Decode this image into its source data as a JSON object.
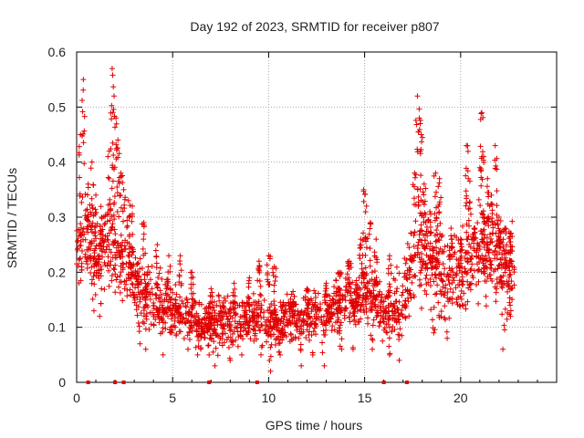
{
  "chart_data": {
    "type": "scatter",
    "title": "Day 192 of 2023, SRMTID for receiver p807",
    "xlabel": "GPS time / hours",
    "ylabel": "SRMTID / TECUs",
    "xlim": [
      0,
      25
    ],
    "ylim": [
      0,
      0.6
    ],
    "xticks": [
      0,
      5,
      10,
      15,
      20
    ],
    "yticks": [
      0,
      0.1,
      0.2,
      0.3,
      0.4,
      0.5,
      0.6
    ],
    "xtick_labels": [
      "0",
      "5",
      "10",
      "15",
      "20"
    ],
    "ytick_labels": [
      "0",
      "0.1",
      "0.2",
      "0.3",
      "0.4",
      "0.5",
      "0.6"
    ],
    "grid": true,
    "marker": "+",
    "color": "#e00000",
    "trend": [
      [
        0.0,
        0.24
      ],
      [
        0.5,
        0.26
      ],
      [
        1.0,
        0.22
      ],
      [
        1.5,
        0.25
      ],
      [
        2.0,
        0.24
      ],
      [
        2.5,
        0.22
      ],
      [
        3.0,
        0.19
      ],
      [
        3.5,
        0.16
      ],
      [
        4.0,
        0.15
      ],
      [
        4.5,
        0.14
      ],
      [
        5.0,
        0.13
      ],
      [
        5.5,
        0.13
      ],
      [
        6.0,
        0.12
      ],
      [
        6.5,
        0.11
      ],
      [
        7.0,
        0.11
      ],
      [
        7.5,
        0.11
      ],
      [
        8.0,
        0.11
      ],
      [
        8.5,
        0.11
      ],
      [
        9.0,
        0.11
      ],
      [
        9.5,
        0.12
      ],
      [
        10.0,
        0.11
      ],
      [
        10.5,
        0.1
      ],
      [
        11.0,
        0.12
      ],
      [
        11.5,
        0.12
      ],
      [
        12.0,
        0.12
      ],
      [
        12.5,
        0.12
      ],
      [
        13.0,
        0.12
      ],
      [
        13.5,
        0.14
      ],
      [
        14.0,
        0.15
      ],
      [
        14.5,
        0.15
      ],
      [
        15.0,
        0.16
      ],
      [
        15.5,
        0.15
      ],
      [
        16.0,
        0.13
      ],
      [
        16.5,
        0.13
      ],
      [
        17.0,
        0.14
      ],
      [
        17.5,
        0.22
      ],
      [
        18.0,
        0.23
      ],
      [
        18.5,
        0.22
      ],
      [
        19.0,
        0.2
      ],
      [
        19.5,
        0.2
      ],
      [
        20.0,
        0.2
      ],
      [
        20.5,
        0.22
      ],
      [
        21.0,
        0.23
      ],
      [
        21.5,
        0.24
      ],
      [
        22.0,
        0.22
      ],
      [
        22.5,
        0.21
      ],
      [
        22.8,
        0.21
      ]
    ],
    "spread": [
      [
        0.0,
        0.07
      ],
      [
        2.0,
        0.08
      ],
      [
        3.5,
        0.05
      ],
      [
        5.0,
        0.04
      ],
      [
        9.0,
        0.04
      ],
      [
        13.5,
        0.04
      ],
      [
        16.0,
        0.04
      ],
      [
        17.5,
        0.07
      ],
      [
        22.8,
        0.07
      ]
    ],
    "peaks": [
      [
        0.35,
        0.55
      ],
      [
        0.2,
        0.45
      ],
      [
        0.6,
        0.36
      ],
      [
        0.8,
        0.4
      ],
      [
        1.0,
        0.34
      ],
      [
        1.3,
        0.3
      ],
      [
        1.7,
        0.42
      ],
      [
        1.85,
        0.57
      ],
      [
        1.95,
        0.52
      ],
      [
        2.05,
        0.48
      ],
      [
        2.15,
        0.44
      ],
      [
        2.3,
        0.38
      ],
      [
        2.45,
        0.35
      ],
      [
        2.7,
        0.33
      ],
      [
        2.9,
        0.32
      ],
      [
        3.5,
        0.29
      ],
      [
        4.2,
        0.25
      ],
      [
        4.8,
        0.23
      ],
      [
        5.4,
        0.23
      ],
      [
        6.0,
        0.2
      ],
      [
        7.0,
        0.17
      ],
      [
        8.2,
        0.18
      ],
      [
        9.0,
        0.19
      ],
      [
        9.5,
        0.22
      ],
      [
        10.0,
        0.23
      ],
      [
        10.3,
        0.21
      ],
      [
        11.2,
        0.16
      ],
      [
        12.0,
        0.17
      ],
      [
        13.0,
        0.18
      ],
      [
        13.7,
        0.2
      ],
      [
        14.2,
        0.22
      ],
      [
        14.8,
        0.26
      ],
      [
        14.95,
        0.35
      ],
      [
        15.1,
        0.32
      ],
      [
        15.3,
        0.29
      ],
      [
        15.6,
        0.26
      ],
      [
        16.3,
        0.23
      ],
      [
        17.4,
        0.23
      ],
      [
        17.6,
        0.38
      ],
      [
        17.75,
        0.52
      ],
      [
        17.85,
        0.48
      ],
      [
        17.95,
        0.45
      ],
      [
        18.1,
        0.36
      ],
      [
        18.4,
        0.31
      ],
      [
        18.7,
        0.38
      ],
      [
        18.9,
        0.37
      ],
      [
        19.5,
        0.28
      ],
      [
        20.0,
        0.26
      ],
      [
        20.3,
        0.43
      ],
      [
        20.4,
        0.37
      ],
      [
        20.7,
        0.28
      ],
      [
        21.0,
        0.39
      ],
      [
        21.1,
        0.49
      ],
      [
        21.2,
        0.41
      ],
      [
        21.4,
        0.37
      ],
      [
        21.6,
        0.34
      ],
      [
        21.8,
        0.43
      ],
      [
        22.0,
        0.3
      ],
      [
        22.3,
        0.28
      ],
      [
        22.6,
        0.27
      ]
    ],
    "lows": [
      [
        0.9,
        0.13
      ],
      [
        1.2,
        0.12
      ],
      [
        3.3,
        0.07
      ],
      [
        3.6,
        0.06
      ],
      [
        4.5,
        0.05
      ],
      [
        5.8,
        0.06
      ],
      [
        6.3,
        0.05
      ],
      [
        6.9,
        0.05
      ],
      [
        7.2,
        0.03
      ],
      [
        8.0,
        0.04
      ],
      [
        8.6,
        0.05
      ],
      [
        9.6,
        0.05
      ],
      [
        10.1,
        0.02
      ],
      [
        10.6,
        0.05
      ],
      [
        11.7,
        0.03
      ],
      [
        12.3,
        0.05
      ],
      [
        12.9,
        0.03
      ],
      [
        13.8,
        0.06
      ],
      [
        14.4,
        0.06
      ],
      [
        15.4,
        0.06
      ],
      [
        16.3,
        0.05
      ],
      [
        16.8,
        0.04
      ],
      [
        18.6,
        0.09
      ],
      [
        19.3,
        0.08
      ],
      [
        22.2,
        0.06
      ],
      [
        22.6,
        0.12
      ]
    ],
    "bottom_markers": [
      0.6,
      2.0,
      2.45,
      6.9,
      9.4,
      16.0,
      17.2
    ]
  }
}
